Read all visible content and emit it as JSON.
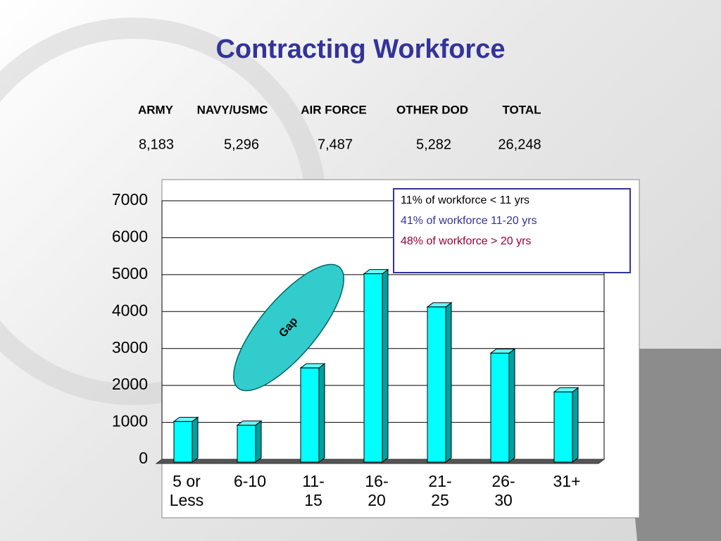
{
  "title": "Contracting Workforce",
  "summary": {
    "columns": [
      "ARMY",
      "NAVY/USMC",
      "AIR FORCE",
      "OTHER DOD",
      "TOTAL"
    ],
    "values": [
      "8,183",
      "5,296",
      "7,487",
      "5,282",
      "26,248"
    ]
  },
  "chart_data": {
    "type": "bar",
    "categories": [
      "5 or Less",
      "6-10",
      "11-15",
      "16-20",
      "21-25",
      "26-30",
      "31+"
    ],
    "values": [
      1100,
      1000,
      2550,
      5100,
      4200,
      2950,
      1900
    ],
    "color": "#00ffff",
    "ylim": [
      0,
      7000
    ],
    "yticks": [
      0,
      1000,
      2000,
      3000,
      4000,
      5000,
      6000,
      7000
    ],
    "grid": true,
    "annotations": [
      {
        "text": "11% of workforce < 11 yrs",
        "color": "#000000"
      },
      {
        "text": "41% of workforce 11-20 yrs",
        "color": "#333399"
      },
      {
        "text": "48% of workforce > 20 yrs",
        "color": "#990033"
      }
    ],
    "gap_label": "Gap"
  }
}
